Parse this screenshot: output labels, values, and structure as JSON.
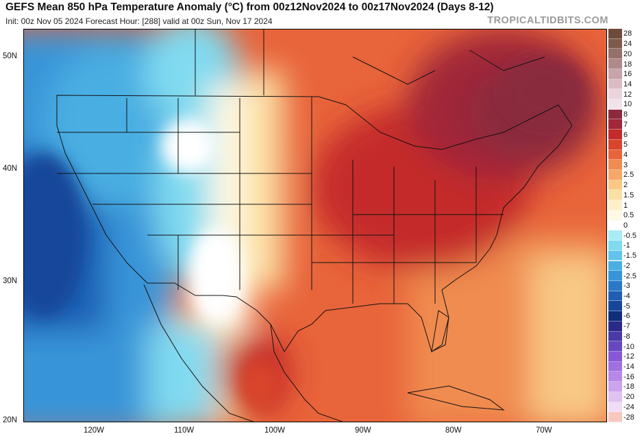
{
  "header": {
    "title": "GEFS Mean 850 hPa Temperature Anomaly (°C) from 00z12Nov2024 to 00z17Nov2024 (Days 8-12)",
    "subtitle": "Init: 00z Nov 05 2024   Forecast Hour: [288]   valid at 00z Sun, Nov 17 2024",
    "credit": "TROPICALTIDBITS.COM"
  },
  "map": {
    "lat_labels": [
      "50N",
      "40N",
      "30N",
      "20N"
    ],
    "lon_labels": [
      "120W",
      "110W",
      "100W",
      "90W",
      "80W",
      "70W"
    ]
  },
  "legend": {
    "labels": [
      "28",
      "24",
      "20",
      "18",
      "16",
      "14",
      "12",
      "10",
      "8",
      "7",
      "6",
      "5",
      "4",
      "3",
      "2.5",
      "2",
      "1.5",
      "1",
      "0.5",
      "0",
      "-0.5",
      "-1",
      "-1.5",
      "-2",
      "-2.5",
      "-3",
      "-4",
      "-5",
      "-6",
      "-7",
      "-8",
      "-10",
      "-12",
      "-14",
      "-16",
      "-18",
      "-20",
      "-24",
      "-28"
    ],
    "colors": [
      "#6e4a3c",
      "#7e5a4c",
      "#96706a",
      "#b08a8a",
      "#c8a4a8",
      "#dcbcc4",
      "#ecd4dc",
      "#f2e2ea",
      "#8a2a3c",
      "#a02838",
      "#c42a2a",
      "#d8452c",
      "#e8643a",
      "#f08c50",
      "#f5a868",
      "#f8c884",
      "#fbe0a4",
      "#fdf0c8",
      "#fffae6",
      "#ffffff",
      "#a8ecf4",
      "#80daf0",
      "#62c4ea",
      "#4aaee2",
      "#3894d8",
      "#2a78c8",
      "#1f5eb4",
      "#16469a",
      "#102e7a",
      "#2a2a8a",
      "#4a3aa8",
      "#6848c0",
      "#8858d4",
      "#a070e0",
      "#b888e8",
      "#cca4ee",
      "#e0c2f2",
      "#f0dcf4",
      "#f8c8c0"
    ]
  }
}
